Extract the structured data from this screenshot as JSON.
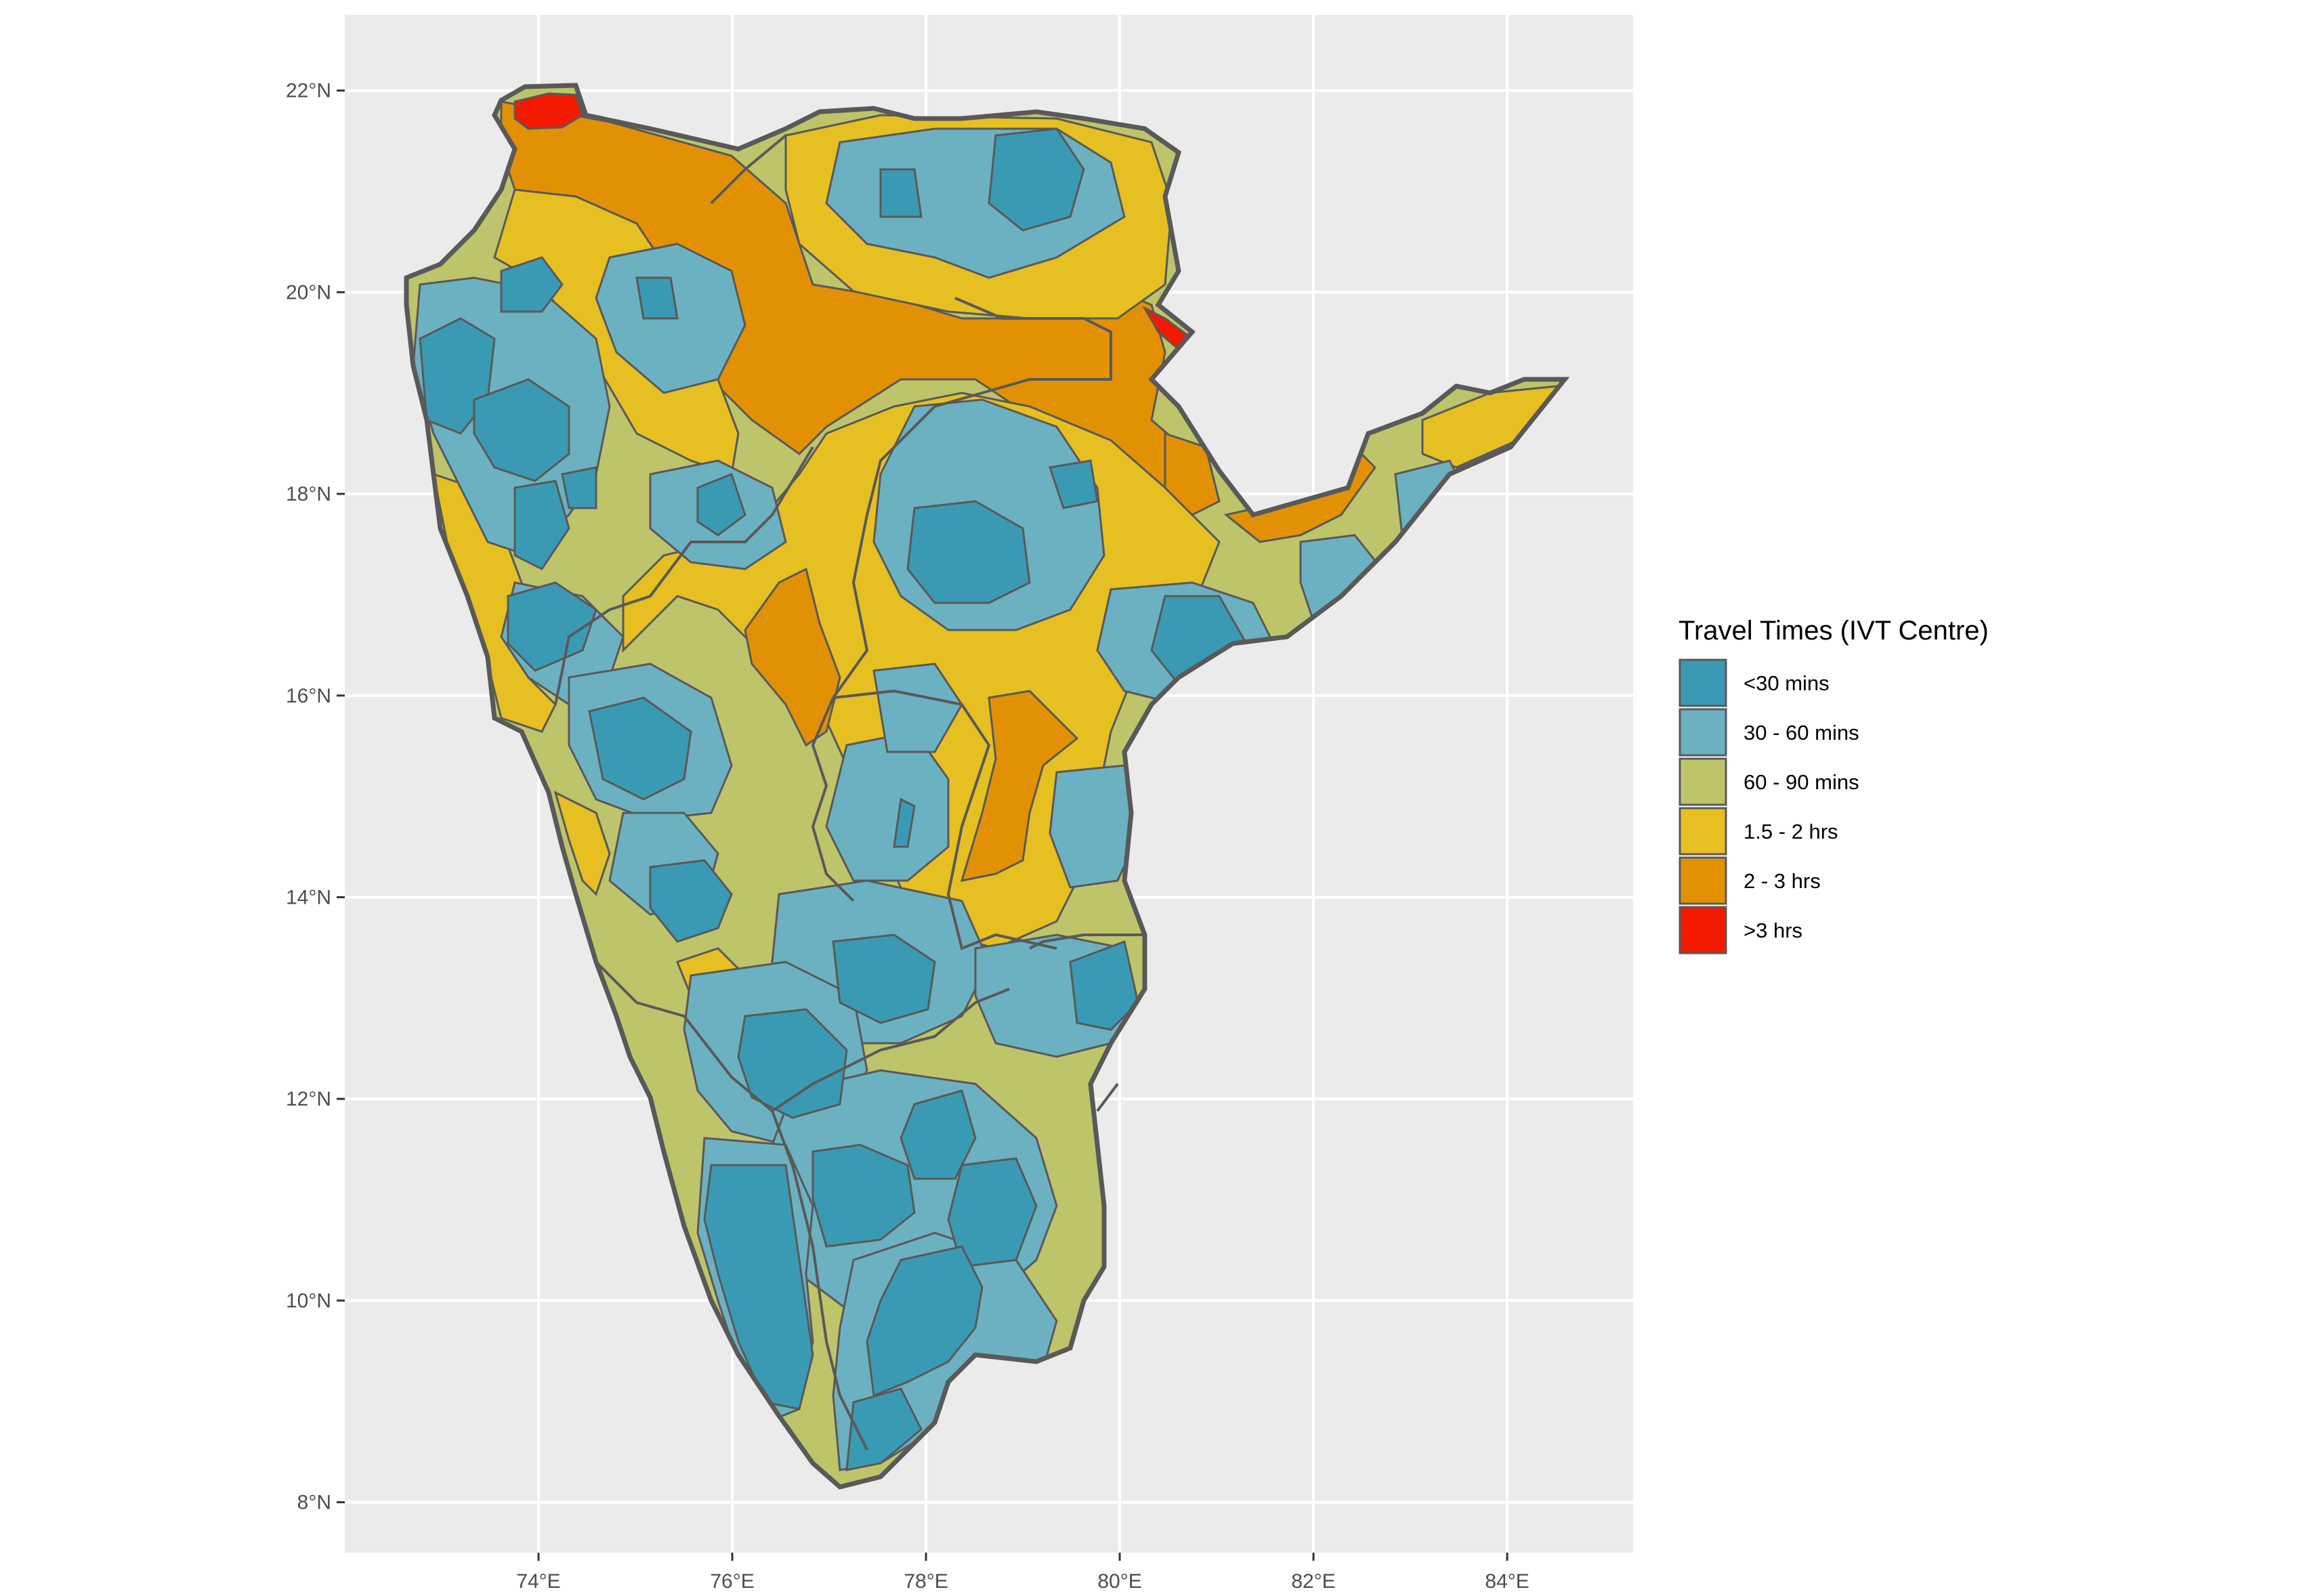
{
  "map": {
    "x_axis": {
      "ticks": [
        {
          "value": 74,
          "label": "74°E"
        },
        {
          "value": 76,
          "label": "76°E"
        },
        {
          "value": 78,
          "label": "78°E"
        },
        {
          "value": 80,
          "label": "80°E"
        },
        {
          "value": 82,
          "label": "82°E"
        },
        {
          "value": 84,
          "label": "84°E"
        }
      ],
      "range": [
        72.0,
        85.3
      ]
    },
    "y_axis": {
      "ticks": [
        {
          "value": 8,
          "label": "8°N"
        },
        {
          "value": 10,
          "label": "10°N"
        },
        {
          "value": 12,
          "label": "12°N"
        },
        {
          "value": 14,
          "label": "14°N"
        },
        {
          "value": 16,
          "label": "16°N"
        },
        {
          "value": 18,
          "label": "18°N"
        },
        {
          "value": 20,
          "label": "20°N"
        },
        {
          "value": 22,
          "label": "22°N"
        }
      ],
      "range": [
        7.5,
        22.75
      ]
    },
    "grid": true,
    "panel_background": "#ebebeb",
    "border_color": "#595959"
  },
  "legend": {
    "title": "Travel Times  (IVT Centre)",
    "position": "right",
    "items": [
      {
        "label": "<30 mins",
        "color": "#3a9ab4"
      },
      {
        "label": "30 - 60 mins",
        "color": "#6cb1c1"
      },
      {
        "label": "60 - 90 mins",
        "color": "#bec46a"
      },
      {
        "label": "1.5 - 2 hrs",
        "color": "#e6bf22"
      },
      {
        "label": "2 - 3 hrs",
        "color": "#e29105"
      },
      {
        "label": ">3 hrs",
        "color": "#f21a00"
      }
    ]
  }
}
